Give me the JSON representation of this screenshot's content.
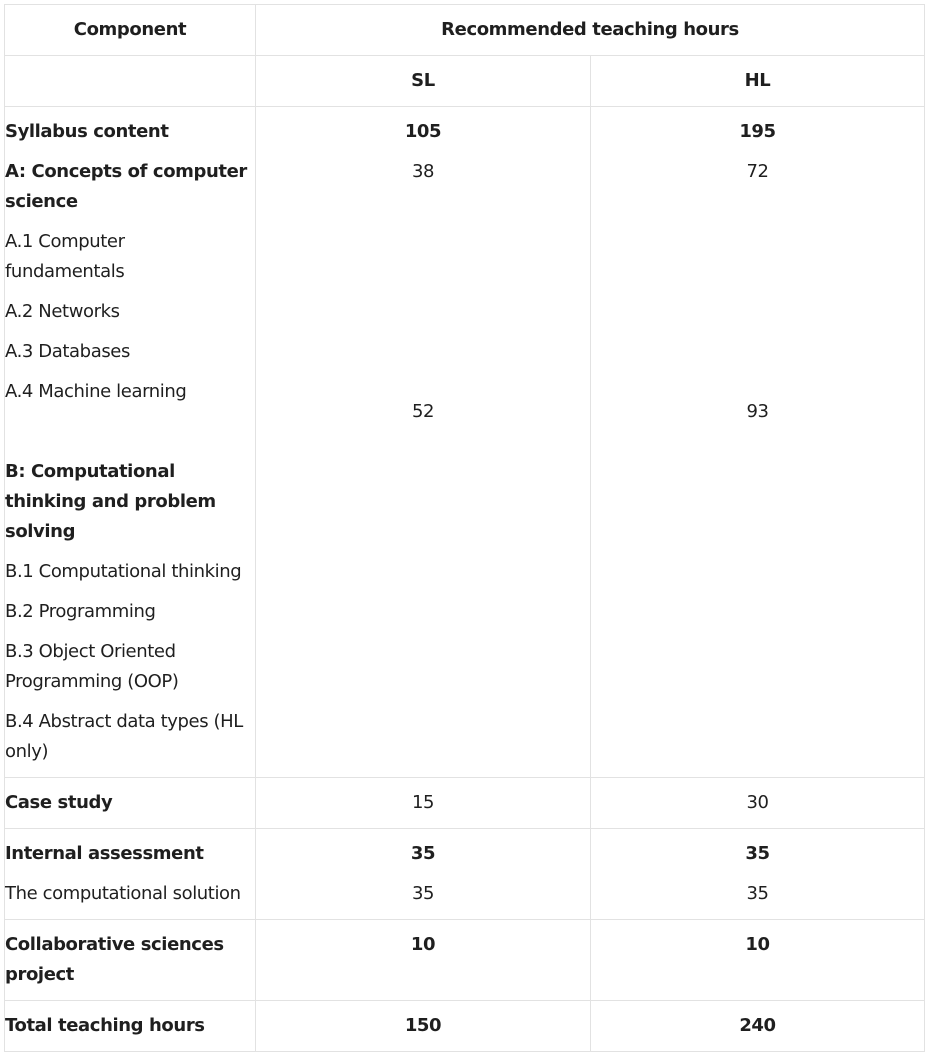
{
  "table": {
    "header": {
      "component": "Component",
      "recommended": "Recommended teaching hours",
      "sl": "SL",
      "hl": "HL"
    },
    "syllabus": {
      "label": "Syllabus content",
      "sl": "105",
      "hl": "195",
      "theme_a": {
        "label": "A: Concepts of computer science",
        "sl": "38",
        "hl": "72",
        "topics": [
          "A.1 Computer fundamentals",
          "A.2 Networks",
          "A.3 Databases",
          "A.4 Machine learning"
        ]
      },
      "theme_b": {
        "label": "B: Computational thinking and problem solving",
        "sl": "52",
        "hl": "93",
        "topics": [
          "B.1 Computational thinking",
          "B.2 Programming",
          "B.3 Object Oriented Programming (OOP)",
          "B.4 Abstract data types (HL only)"
        ]
      }
    },
    "case_study": {
      "label": "Case study",
      "sl": "15",
      "hl": "30"
    },
    "internal_assessment": {
      "label": "Internal assessment",
      "sl": "35",
      "hl": "35",
      "sub_label": "The computational solution",
      "sub_sl": "35",
      "sub_hl": "35"
    },
    "collaborative": {
      "label": "Collaborative sciences project",
      "sl": "10",
      "hl": "10"
    },
    "total": {
      "label": "Total teaching hours",
      "sl": "150",
      "hl": "240"
    }
  }
}
